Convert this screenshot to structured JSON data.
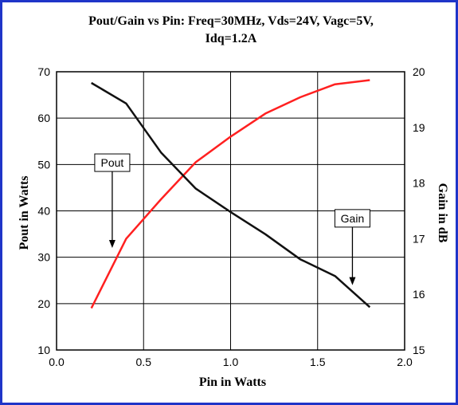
{
  "chart_data": {
    "type": "line",
    "title_line1": "Pout/Gain vs Pin: Freq=30MHz, Vds=24V, Vagc=5V,",
    "title_line2": "Idq=1.2A",
    "xlabel": "Pin in Watts",
    "ylabel_left": "Pout in Watts",
    "ylabel_right": "Gain in dB",
    "xlim": [
      0,
      2
    ],
    "ylim_left": [
      10,
      70
    ],
    "ylim_right": [
      15,
      20
    ],
    "x_ticks": [
      0.0,
      0.5,
      1.0,
      1.5,
      2.0
    ],
    "x_tick_labels": [
      "0.0",
      "0.5",
      "1.0",
      "1.5",
      "2.0"
    ],
    "y_left_ticks": [
      10,
      20,
      30,
      40,
      50,
      60,
      70
    ],
    "y_right_ticks": [
      15,
      16,
      17,
      18,
      19,
      20
    ],
    "grid": true,
    "colors": {
      "pout": "#ff2020",
      "gain": "#111111",
      "frame": "#1f35c8"
    },
    "series": [
      {
        "name": "Pout",
        "axis": "left",
        "x": [
          0.2,
          0.4,
          0.6,
          0.8,
          1.0,
          1.2,
          1.4,
          1.6,
          1.8
        ],
        "y": [
          19,
          34,
          42.5,
          50.5,
          56,
          61,
          64.5,
          67.3,
          68.2
        ]
      },
      {
        "name": "Gain",
        "axis": "right",
        "x": [
          0.2,
          0.4,
          0.6,
          0.8,
          1.0,
          1.2,
          1.4,
          1.6,
          1.8
        ],
        "y": [
          19.8,
          19.43,
          18.55,
          17.9,
          17.48,
          17.08,
          16.63,
          16.33,
          15.77
        ]
      }
    ],
    "annotations": [
      {
        "text": "Pout",
        "arrow_from": [
          0.32,
          48.5
        ],
        "arrow_to": [
          0.32,
          32
        ]
      },
      {
        "text": "Gain",
        "arrow_from": [
          1.7,
          36.5
        ],
        "arrow_to": [
          1.7,
          24
        ]
      }
    ]
  }
}
